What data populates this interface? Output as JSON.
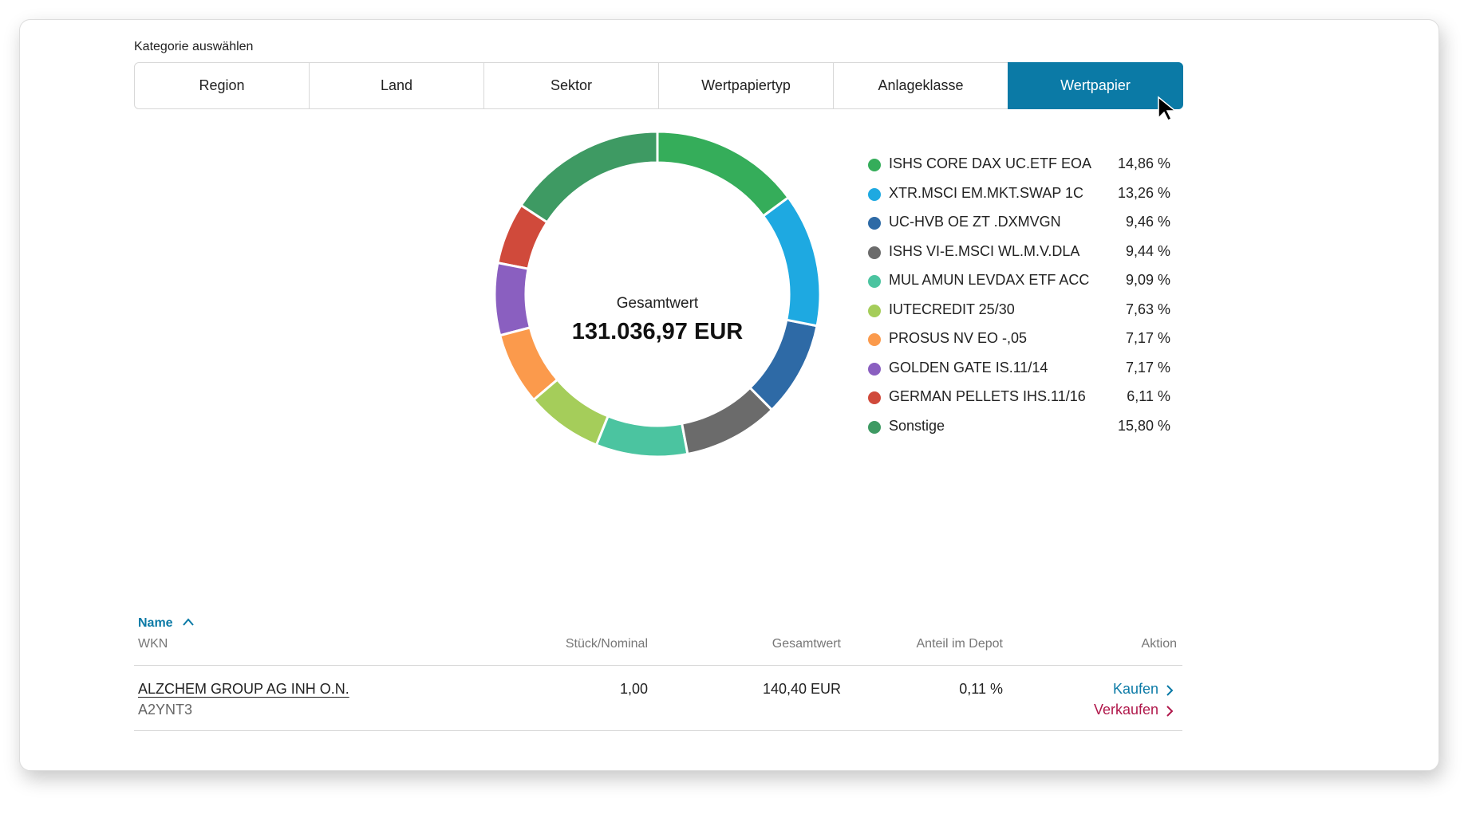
{
  "category_label": "Kategorie auswählen",
  "tabs": [
    {
      "label": "Region",
      "active": false
    },
    {
      "label": "Land",
      "active": false
    },
    {
      "label": "Sektor",
      "active": false
    },
    {
      "label": "Wertpapiertyp",
      "active": false
    },
    {
      "label": "Anlageklasse",
      "active": false
    },
    {
      "label": "Wertpapier",
      "active": true
    }
  ],
  "chart_data": {
    "type": "donut",
    "center_label": "Gesamtwert",
    "center_value": "131.036,97 EUR",
    "categories": [
      "ISHS CORE DAX UC.ETF EOA",
      "XTR.MSCI EM.MKT.SWAP 1C",
      "UC-HVB OE ZT .DXMVGN",
      "ISHS VI-E.MSCI WL.M.V.DLA",
      "MUL AMUN LEVDAX ETF ACC",
      "IUTECREDIT 25/30",
      "PROSUS NV EO -,05",
      "GOLDEN GATE IS.11/14",
      "GERMAN PELLETS IHS.11/16",
      "Sonstige"
    ],
    "values": [
      14.86,
      13.26,
      9.46,
      9.44,
      9.09,
      7.63,
      7.17,
      7.17,
      6.11,
      15.8
    ],
    "value_labels": [
      "14,86 %",
      "13,26 %",
      "9,46 %",
      "9,44 %",
      "9,09 %",
      "7,63 %",
      "7,17 %",
      "7,17 %",
      "6,11 %",
      "15,80 %"
    ],
    "colors": [
      "#35ad5a",
      "#1ea9e1",
      "#2e6aa6",
      "#6b6b6b",
      "#4bc4a0",
      "#a5cd5a",
      "#fb9a4c",
      "#8a5fc0",
      "#d04a3b",
      "#3e9a63"
    ]
  },
  "table": {
    "headers": {
      "name": "Name",
      "wkn": "WKN",
      "quantity": "Stück/Nominal",
      "value": "Gesamtwert",
      "share": "Anteil im Depot",
      "action": "Aktion"
    },
    "rows": [
      {
        "name": "ALZCHEM GROUP AG INH O.N.",
        "wkn": "A2YNT3",
        "quantity": "1,00",
        "value": "140,40 EUR",
        "share": "0,11 %",
        "buy": "Kaufen",
        "sell": "Verkaufen"
      }
    ]
  }
}
